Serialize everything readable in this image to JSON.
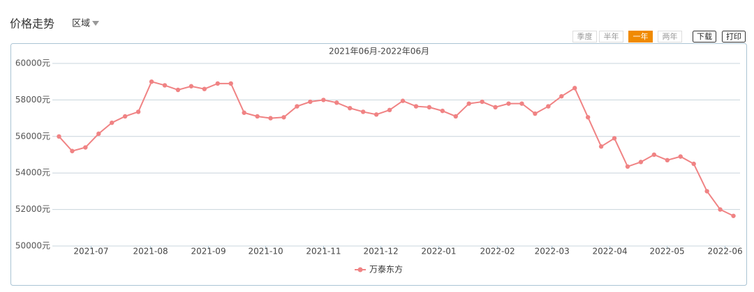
{
  "header": {
    "title": "价格走势",
    "region": "区域"
  },
  "buttons": [
    "季度",
    "半年",
    "一年",
    "两年"
  ],
  "actions": [
    "下载",
    "打印"
  ],
  "chart_data": {
    "type": "line",
    "subtitle": "2021年06月-2022年06月",
    "series": [
      {
        "name": "万泰东方",
        "color": "#f08384",
        "values": [
          56000,
          55200,
          55400,
          56150,
          56750,
          57100,
          57350,
          59000,
          58800,
          58550,
          58750,
          58600,
          58900,
          58900,
          57300,
          57100,
          57000,
          57050,
          57650,
          57900,
          58000,
          57850,
          57550,
          57350,
          57200,
          57450,
          57950,
          57650,
          57600,
          57400,
          57100,
          57800,
          57900,
          57600,
          57800,
          57800,
          57250,
          57650,
          58200,
          58650,
          57050,
          55450,
          55900,
          54350,
          54600,
          55000,
          54700,
          54900,
          54500,
          53000,
          52000,
          51650
        ]
      }
    ],
    "ylim": [
      50000,
      60000
    ],
    "yticks": [
      {
        "value": 50000,
        "label": "50000元"
      },
      {
        "value": 52000,
        "label": "52000元"
      },
      {
        "value": 54000,
        "label": "54000元"
      },
      {
        "value": 56000,
        "label": "56000元"
      },
      {
        "value": 58000,
        "label": "58000元"
      },
      {
        "value": 60000,
        "label": "60000元"
      }
    ],
    "xlim": [
      -0.5,
      51.5
    ],
    "xticks": [
      {
        "value": 2.43,
        "label": "2021-07"
      },
      {
        "value": 6.92,
        "label": "2021-08"
      },
      {
        "value": 11.3,
        "label": "2021-09"
      },
      {
        "value": 15.63,
        "label": "2021-10"
      },
      {
        "value": 20.01,
        "label": "2021-11"
      },
      {
        "value": 24.34,
        "label": "2021-12"
      },
      {
        "value": 28.72,
        "label": "2022-01"
      },
      {
        "value": 33.16,
        "label": "2022-02"
      },
      {
        "value": 37.28,
        "label": "2022-03"
      },
      {
        "value": 41.66,
        "label": "2022-04"
      },
      {
        "value": 45.99,
        "label": "2022-05"
      },
      {
        "value": 50.37,
        "label": "2022-06"
      }
    ],
    "grid": true,
    "legend": "bottom"
  }
}
